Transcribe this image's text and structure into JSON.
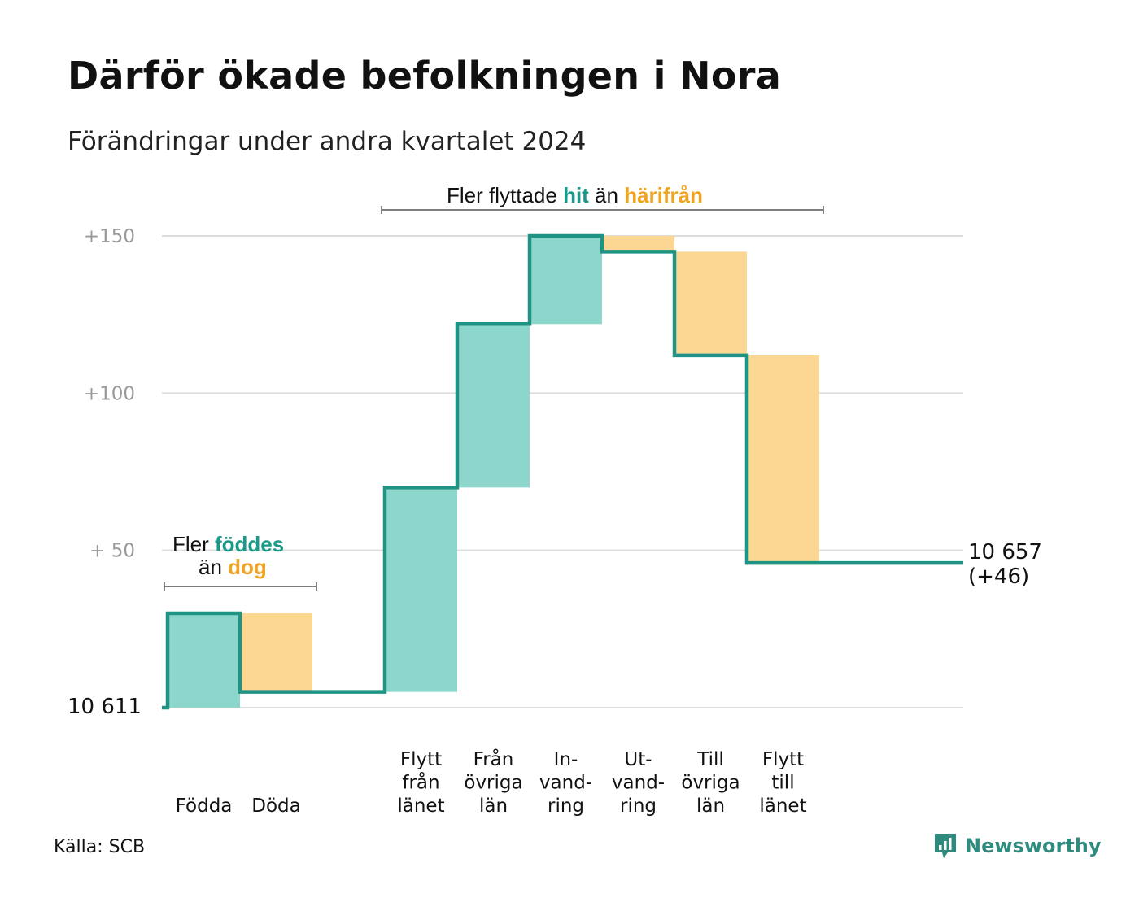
{
  "title": "Därför ökade befolkningen i Nora",
  "subtitle": "Förändringar under andra kvartalet 2024",
  "source": "Källa: SCB",
  "brand": "Newsworthy",
  "colors": {
    "increase": "#8dd6cb",
    "decrease": "#fbd793",
    "line": "#1f9484",
    "teal_text": "#1a9988",
    "orange_text": "#f0a421",
    "grid": "#dddddd"
  },
  "annotations": {
    "births": {
      "line1_prefix": "Fler ",
      "line1_hl": "föddes",
      "line2_prefix": "än ",
      "line2_hl": "dog"
    },
    "migration": {
      "prefix": "Fler flyttade ",
      "hl1": "hit",
      "mid": " än ",
      "hl2": "härifrån"
    }
  },
  "chart_data": {
    "type": "waterfall",
    "baseline_value": 10611,
    "baseline_label": "10  611",
    "end_value": 10657,
    "end_label_line1": "10 657",
    "end_label_line2": "(+46)",
    "ylim": [
      0,
      150
    ],
    "yticks": [
      {
        "value": 50,
        "label": "+  50"
      },
      {
        "value": 100,
        "label": "+100"
      },
      {
        "value": 150,
        "label": "+150"
      }
    ],
    "steps": [
      {
        "lines": [
          "Födda"
        ],
        "value": 30,
        "direction": "increase"
      },
      {
        "lines": [
          "Döda"
        ],
        "value": -25,
        "direction": "decrease"
      },
      {
        "lines": [],
        "value": 0,
        "direction": "none"
      },
      {
        "lines": [
          "Flytt",
          "från",
          "länet"
        ],
        "value": 65,
        "direction": "increase"
      },
      {
        "lines": [
          "Från",
          "övriga",
          "län"
        ],
        "value": 52,
        "direction": "increase"
      },
      {
        "lines": [
          "In-",
          "vand-",
          "ring"
        ],
        "value": 28,
        "direction": "increase"
      },
      {
        "lines": [
          "Ut-",
          "vand-",
          "ring"
        ],
        "value": -5,
        "direction": "decrease"
      },
      {
        "lines": [
          "Till",
          "övriga",
          "län"
        ],
        "value": -33,
        "direction": "decrease"
      },
      {
        "lines": [
          "Flytt",
          "till",
          "länet"
        ],
        "value": -66,
        "direction": "decrease"
      }
    ]
  }
}
